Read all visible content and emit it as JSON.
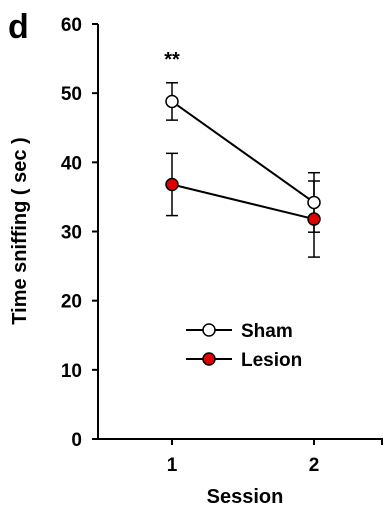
{
  "panel_label": "d",
  "significance_label": "**",
  "colors": {
    "sham": "#ffffff",
    "lesion": "#e00000",
    "stroke": "#000000"
  },
  "chart_data": {
    "type": "line",
    "xlabel": "Session",
    "ylabel": "Time sniffing ( sec )",
    "x": [
      1,
      2
    ],
    "x_ticks": [
      "1",
      "2"
    ],
    "xlim": [
      0.5,
      2.5
    ],
    "ylim": [
      0,
      60
    ],
    "y_ticks": [
      "0",
      "10",
      "20",
      "30",
      "40",
      "50",
      "60"
    ],
    "grid": false,
    "legend_position": "center-right",
    "series": [
      {
        "name": "Sham",
        "values": [
          48.8,
          34.2
        ],
        "error": [
          2.7,
          4.3
        ],
        "marker": "open-circle"
      },
      {
        "name": "Lesion",
        "values": [
          36.8,
          31.8
        ],
        "error": [
          4.5,
          5.5
        ],
        "marker": "filled-red-circle"
      }
    ],
    "annotations": [
      {
        "text": "**",
        "x": 1
      }
    ]
  }
}
